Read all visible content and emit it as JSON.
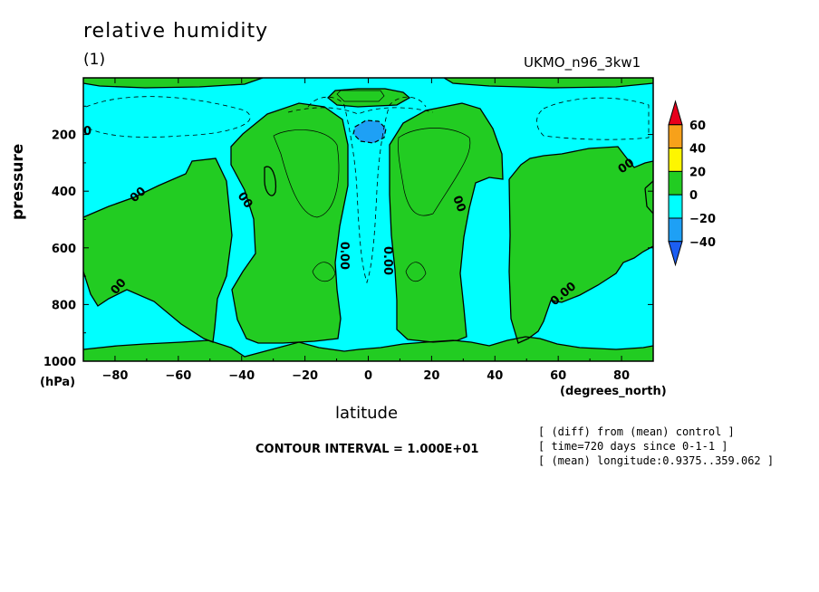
{
  "header": {
    "title": "relative humidity",
    "panel": "(1)",
    "model": "UKMO_n96_3kw1"
  },
  "footer": {
    "contour_interval": "CONTOUR INTERVAL = 1.000E+01",
    "meta": [
      "[ (diff) from (mean) control ]",
      "[ time=720 days since 0-1-1 ]",
      "[ (mean) longitude:0.9375..359.062 ]"
    ]
  },
  "chart_data": {
    "type": "heatmap",
    "title": "relative humidity",
    "xlabel": "latitude",
    "xunit": "(degrees_north)",
    "ylabel": "pressure",
    "yunit": "(hPa)",
    "xlim": [
      -90,
      90
    ],
    "ylim": [
      1000,
      0
    ],
    "xticks": [
      -80,
      -60,
      -40,
      -20,
      0,
      20,
      40,
      60,
      80
    ],
    "yticks": [
      200,
      400,
      600,
      800,
      1000
    ],
    "contour_interval": 10,
    "grid": false,
    "colorbar": {
      "levels": [
        60,
        40,
        20,
        0,
        -20,
        -40
      ],
      "bands": [
        {
          "label": "> 60",
          "color": "#e8001c"
        },
        {
          "label": "40 to 60",
          "color": "#f7a11a"
        },
        {
          "label": "20 to 40",
          "color": "#fef600"
        },
        {
          "label": "0 to 20",
          "color": "#22cc22"
        },
        {
          "label": "-20 to 0",
          "color": "#00ffff"
        },
        {
          "label": "-40 to -20",
          "color": "#1ea0f5"
        },
        {
          "label": "< -40",
          "color": "#1c5ef2"
        }
      ],
      "placement": "right"
    },
    "regions": [
      {
        "value_range": "0 to 20",
        "color": "#22cc22",
        "note": "southern lower troposphere, 90S to 50S"
      },
      {
        "value_range": "0 to 20",
        "color": "#22cc22",
        "note": "southern subtropical column, 45S to 5S"
      },
      {
        "value_range": "0 to 20",
        "color": "#22cc22",
        "note": "northern subtropical column, 5N to 45N"
      },
      {
        "value_range": "0 to 20",
        "color": "#22cc22",
        "note": "northern lower troposphere, 45N to 90N"
      },
      {
        "value_range": "0 to 20",
        "color": "#22cc22",
        "note": "near surface, 1000 to 950 hPa"
      },
      {
        "value_range": "0 to 20",
        "color": "#22cc22",
        "note": "upper levels, about 50 hPa"
      },
      {
        "value_range": "-40 to -20",
        "color": "#1ea0f5",
        "note": "equatorial minimum near 200 hPa"
      }
    ],
    "contour_labels": [
      "0",
      "00",
      "0.00",
      "00'0"
    ]
  },
  "colors": {
    "background": "#00ffff",
    "positive": "#22cc22",
    "negative": "#1ea0f5"
  }
}
